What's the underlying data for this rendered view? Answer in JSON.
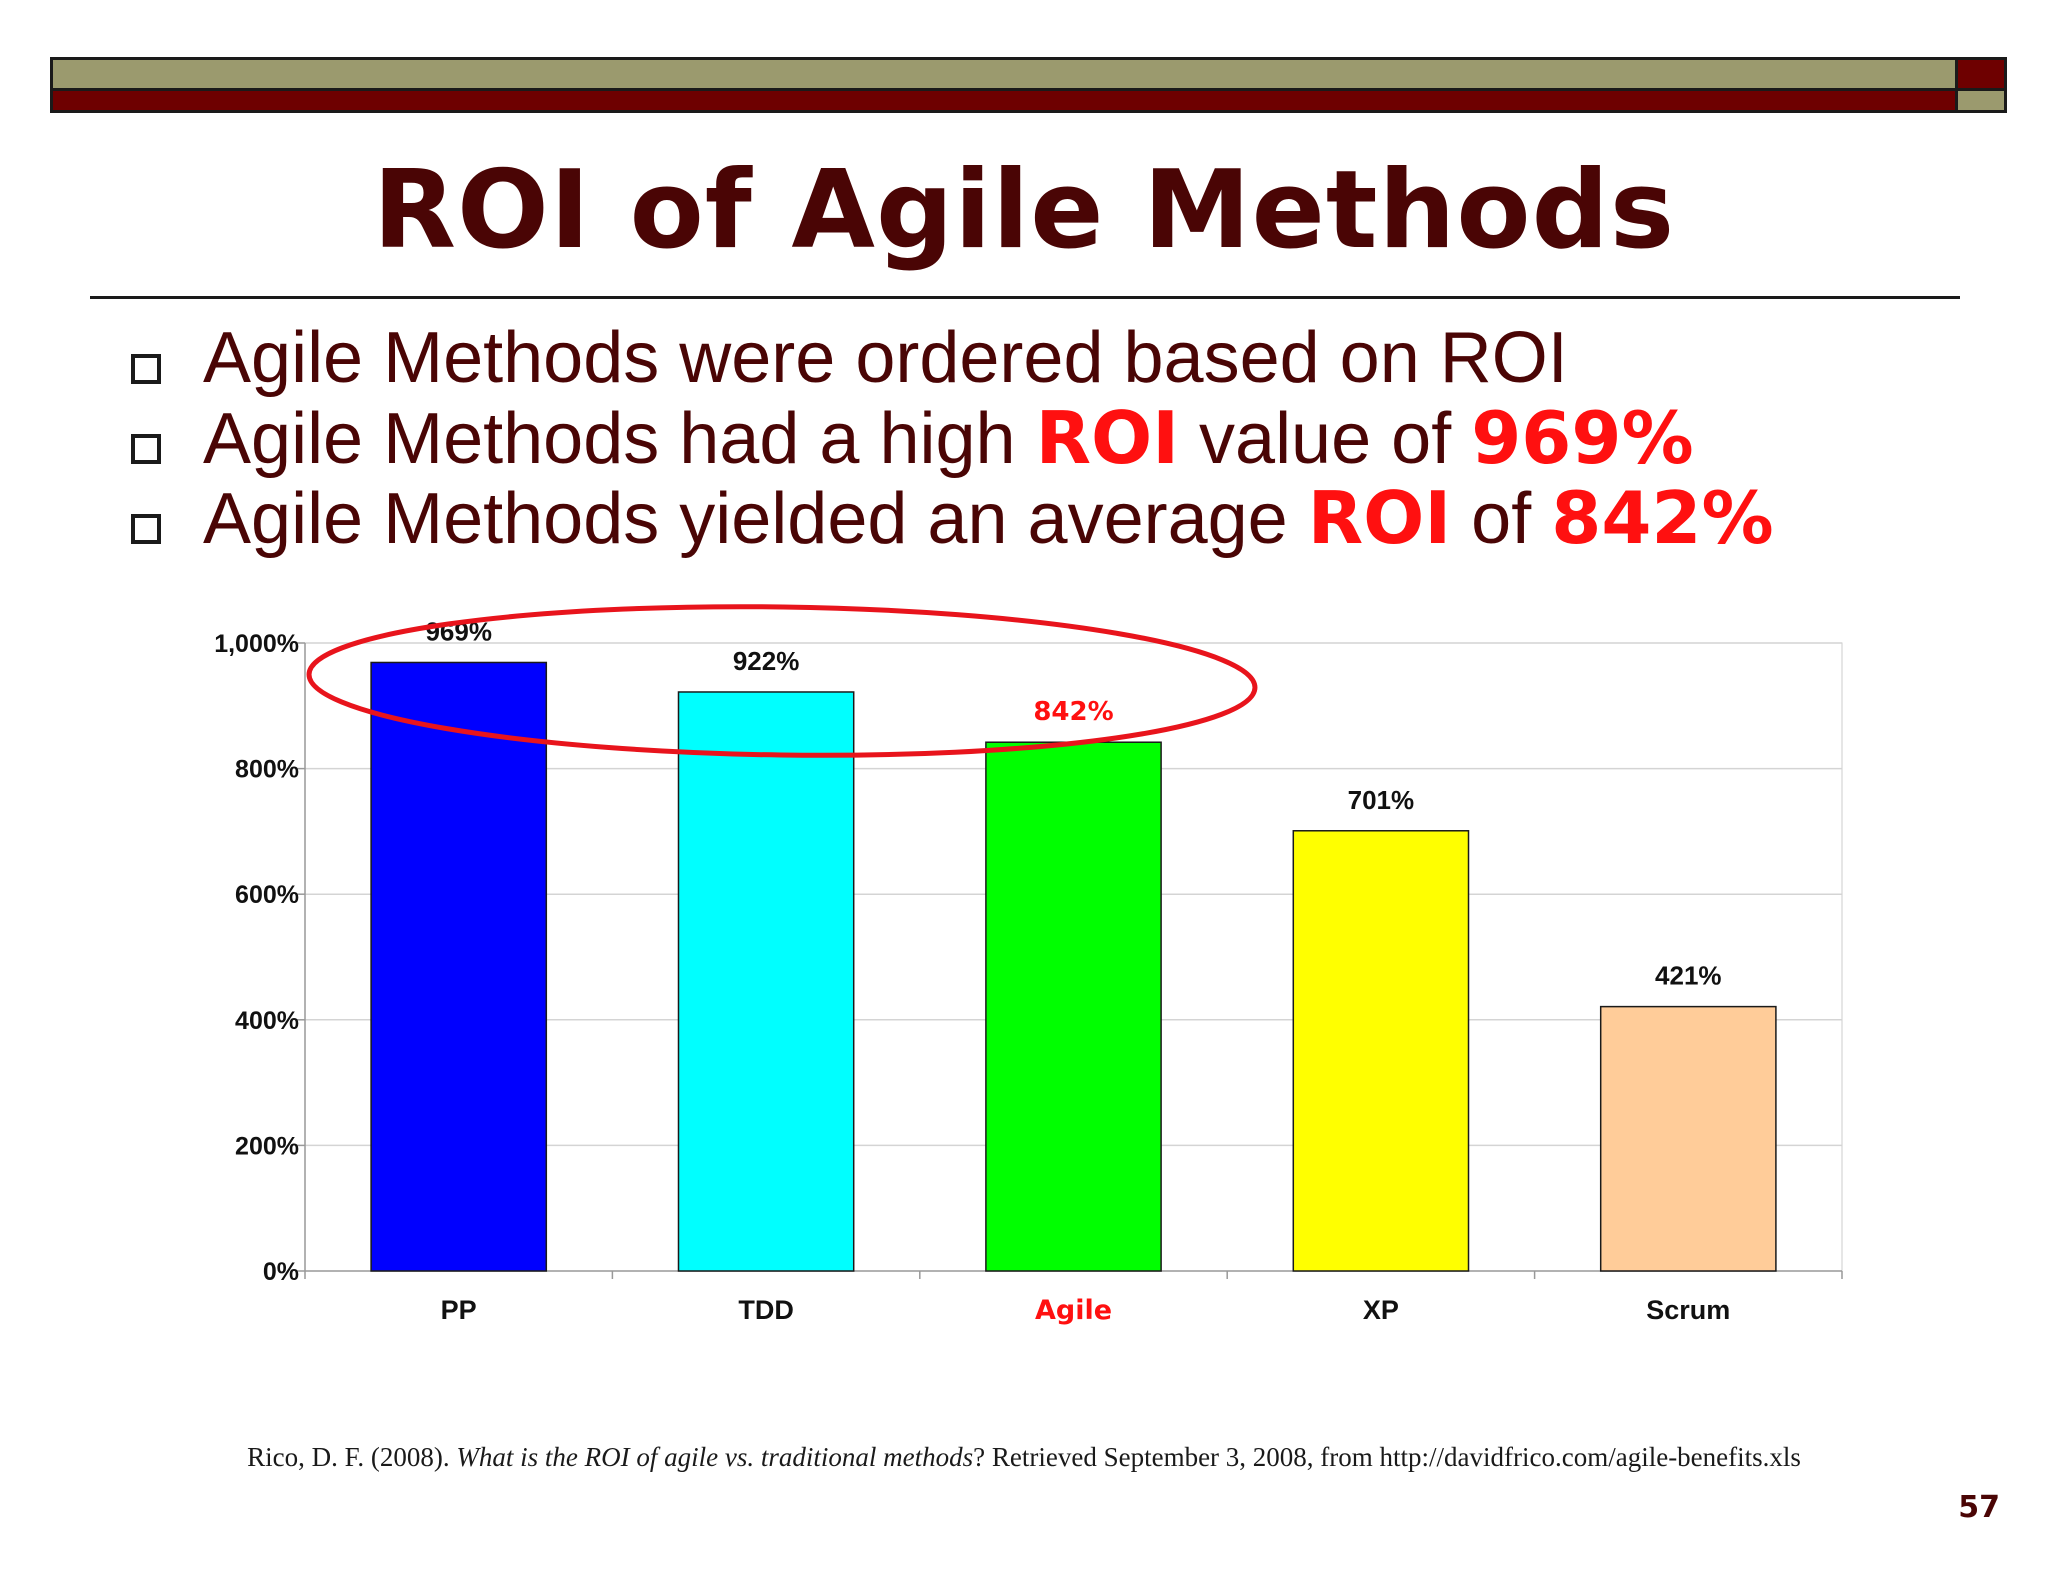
{
  "title": "ROI of Agile Methods",
  "bullets": [
    {
      "text": "Agile Methods were ordered based on ROI"
    },
    {
      "prefix": "Agile Methods had a high ",
      "em1": "ROI",
      "mid": " value of ",
      "em2": "969%"
    },
    {
      "prefix": "Agile Methods yielded an average ",
      "em1": "ROI",
      "mid": " of ",
      "em2": "842%"
    }
  ],
  "colors": {
    "title": "#4a0505",
    "emphasis": "#ff1010",
    "header_olive": "#9b9a6e",
    "header_red": "#6e0000"
  },
  "chart_data": {
    "type": "bar",
    "categories": [
      "PP",
      "TDD",
      "Agile",
      "XP",
      "Scrum"
    ],
    "values": [
      969,
      922,
      842,
      701,
      421
    ],
    "value_labels": [
      "969%",
      "922%",
      "842%",
      "701%",
      "421%"
    ],
    "bar_colors": [
      "#0000ff",
      "#00ffff",
      "#00ff00",
      "#ffff00",
      "#ffcc99"
    ],
    "highlight_category": "Agile",
    "highlight_color": "#ff1010",
    "ylim": [
      0,
      1000
    ],
    "yticks": [
      0,
      200,
      400,
      600,
      800,
      1000
    ],
    "ytick_labels": [
      "0%",
      "200%",
      "400%",
      "600%",
      "800%",
      "1,000%"
    ],
    "grid": true,
    "annotation": "red ellipse circling the top three bars (PP, TDD, Agile)",
    "title": "",
    "xlabel": "",
    "ylabel": ""
  },
  "citation": {
    "before": "Rico, D. F. (2008). ",
    "italic": "What is the ROI of agile vs. traditional methods",
    "after": "? Retrieved September 3, 2008, from http://davidfrico.com/agile-benefits.xls"
  },
  "page_number": "57"
}
